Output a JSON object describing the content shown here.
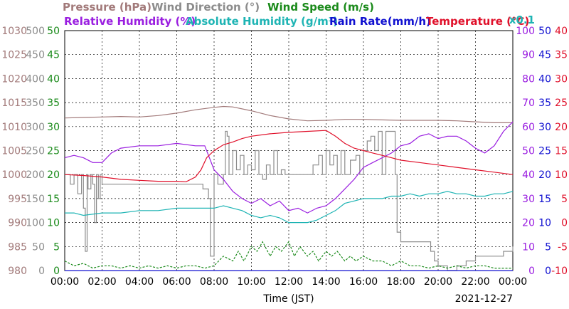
{
  "chart_data": {
    "type": "line",
    "date_label": "2021-12-27",
    "xlabel": "Time (JST)",
    "x_ticks": [
      "00:00",
      "02:00",
      "04:00",
      "06:00",
      "08:00",
      "10:00",
      "12:00",
      "14:00",
      "16:00",
      "18:00",
      "20:00",
      "22:00",
      "00:00"
    ],
    "x_range_hours": [
      0,
      24
    ],
    "grid": true,
    "legend": {
      "row1": [
        {
          "key": "pressure",
          "text": "Pressure (hPa)",
          "color": "#a27a7a"
        },
        {
          "key": "wind_dir",
          "text": "Wind Direction (°)",
          "color": "#8c8c8c"
        },
        {
          "key": "wind_speed",
          "text": "Wind Speed (m/s)",
          "color": "#1a8a1a"
        }
      ],
      "row2": [
        {
          "key": "rh",
          "text": "Relative Humidity (%)",
          "color": "#9a1ee0"
        },
        {
          "key": "ah",
          "text": "Absolute Humidity (g/m³)",
          "color": "#1eb4b4"
        },
        {
          "key": "rain",
          "text": "Rain Rate(mm/h)",
          "color": "#1010d0"
        },
        {
          "key": "temp",
          "text": "Temperature (°C)",
          "color": "#e0102a"
        }
      ],
      "multiplier_note": "x0.1"
    },
    "axes": {
      "pressure": {
        "color": "#a27a7a",
        "range": [
          980,
          1030
        ],
        "ticks": [
          "1030",
          "1025",
          "1020",
          "1015",
          "1010",
          "1005",
          "1000",
          "995",
          "990",
          "985",
          "980"
        ]
      },
      "wind_dir": {
        "color": "#8c8c8c",
        "range": [
          0,
          500
        ],
        "ticks": [
          "500",
          "450",
          "400",
          "350",
          "300",
          "250",
          "200",
          "150",
          "100",
          "50",
          "0"
        ]
      },
      "wind_speed": {
        "color": "#1a8a1a",
        "range": [
          0,
          50
        ],
        "ticks": [
          "50",
          "45",
          "40",
          "35",
          "30",
          "25",
          "20",
          "15",
          "10",
          "5",
          "0"
        ]
      },
      "rh": {
        "color": "#9a1ee0",
        "range": [
          0,
          100
        ],
        "ticks": [
          "100",
          "90",
          "80",
          "70",
          "60",
          "50",
          "40",
          "30",
          "20",
          "10",
          "0"
        ]
      },
      "rain": {
        "color": "#1010d0",
        "range": [
          0,
          50
        ],
        "ticks": [
          "50",
          "45",
          "40",
          "35",
          "30",
          "25",
          "20",
          "15",
          "10",
          "5",
          "0"
        ]
      },
      "temp": {
        "color": "#e0102a",
        "range": [
          -10,
          40
        ],
        "ticks": [
          "40",
          "35",
          "30",
          "25",
          "20",
          "15",
          "10",
          "5",
          "0",
          "-5",
          "-10"
        ]
      }
    },
    "series": [
      {
        "name": "Pressure (hPa)",
        "axis": "pressure",
        "color": "#a27a7a",
        "x": [
          0,
          1,
          2,
          3,
          4,
          5,
          6,
          7,
          8,
          8.5,
          9,
          10,
          11,
          12,
          13,
          14,
          15,
          16,
          17,
          18,
          19,
          20,
          21,
          22,
          23,
          24
        ],
        "values": [
          1011.8,
          1011.9,
          1012.0,
          1012.1,
          1012.0,
          1012.3,
          1012.8,
          1013.5,
          1014.0,
          1014.2,
          1014.1,
          1013.3,
          1012.3,
          1011.6,
          1011.2,
          1011.3,
          1011.5,
          1011.5,
          1011.4,
          1011.3,
          1011.3,
          1011.3,
          1011.2,
          1011.0,
          1010.8,
          1010.8
        ]
      },
      {
        "name": "Wind Direction (°)",
        "axis": "wind_dir",
        "color": "#8c8c8c",
        "step": true,
        "x": [
          0,
          0.3,
          0.5,
          0.7,
          0.9,
          1.0,
          1.1,
          1.2,
          1.25,
          1.4,
          1.5,
          1.6,
          1.7,
          1.8,
          1.9,
          2.0,
          2.1,
          7.3,
          7.4,
          7.7,
          7.8,
          8.0,
          8.2,
          8.5,
          8.6,
          8.7,
          8.8,
          9.0,
          9.2,
          9.4,
          9.6,
          9.8,
          10.0,
          10.2,
          10.4,
          10.6,
          10.8,
          11.0,
          11.2,
          11.4,
          11.6,
          11.8,
          12.0,
          12.5,
          13.0,
          13.3,
          13.6,
          13.8,
          14.0,
          14.2,
          14.4,
          14.6,
          14.8,
          15.0,
          15.3,
          15.6,
          15.8,
          16.0,
          16.2,
          16.4,
          16.6,
          16.8,
          17.0,
          17.2,
          17.4,
          17.6,
          17.7,
          17.8,
          18.0,
          19.0,
          19.6,
          19.8,
          20.0,
          20.5,
          21.0,
          21.5,
          22.0,
          23.0,
          23.5,
          24.0
        ],
        "values": [
          200,
          180,
          200,
          160,
          200,
          130,
          40,
          200,
          170,
          200,
          180,
          100,
          200,
          150,
          200,
          180,
          180,
          180,
          170,
          150,
          30,
          200,
          180,
          200,
          290,
          280,
          200,
          250,
          210,
          240,
          200,
          220,
          210,
          250,
          200,
          190,
          220,
          200,
          250,
          200,
          210,
          200,
          200,
          200,
          200,
          220,
          240,
          200,
          250,
          220,
          240,
          200,
          250,
          200,
          230,
          240,
          200,
          250,
          270,
          280,
          250,
          290,
          200,
          290,
          290,
          290,
          200,
          80,
          60,
          60,
          40,
          20,
          10,
          0,
          10,
          20,
          30,
          30,
          40,
          50
        ]
      },
      {
        "name": "Wind Speed (m/s)",
        "axis": "wind_speed",
        "color": "#1a8a1a",
        "dashed": true,
        "x": [
          0,
          0.5,
          1,
          1.5,
          2,
          2.5,
          3,
          3.5,
          4,
          4.5,
          5,
          5.5,
          6,
          6.5,
          7,
          7.5,
          8,
          8.5,
          9,
          9.3,
          9.6,
          10,
          10.3,
          10.6,
          11,
          11.3,
          11.6,
          12,
          12.3,
          12.6,
          13,
          13.3,
          13.6,
          14,
          14.3,
          14.6,
          15,
          15.3,
          15.6,
          16,
          16.5,
          17,
          17.5,
          18,
          18.5,
          19,
          19.5,
          20,
          20.5,
          21,
          21.5,
          22,
          22.5,
          23,
          23.5,
          24
        ],
        "values": [
          2,
          1,
          1.5,
          0.5,
          1,
          1,
          0.5,
          1,
          0.5,
          1,
          0.5,
          1,
          0.5,
          1,
          1,
          0.5,
          1,
          3,
          2,
          4,
          2,
          5,
          4,
          6,
          3,
          5,
          4,
          6,
          3,
          5,
          3,
          4,
          2,
          4,
          3,
          4,
          2,
          3,
          2,
          3,
          2,
          2,
          1,
          2,
          1,
          1,
          0.5,
          1,
          0.5,
          1,
          0.5,
          1,
          1,
          0.5,
          0.5,
          0.5
        ]
      },
      {
        "name": "Relative Humidity (%)",
        "axis": "rh",
        "color": "#9a1ee0",
        "x": [
          0,
          0.5,
          1,
          1.5,
          2,
          2.5,
          3,
          4,
          5,
          6,
          7,
          7.5,
          8,
          8.5,
          9,
          9.5,
          10,
          10.5,
          11,
          11.5,
          12,
          12.5,
          13,
          13.5,
          14,
          14.5,
          15,
          15.5,
          16,
          16.5,
          17,
          17.5,
          18,
          18.5,
          19,
          19.5,
          20,
          20.5,
          21,
          21.5,
          22,
          22.5,
          23,
          23.5,
          24
        ],
        "values": [
          47,
          48,
          47,
          45,
          45,
          49,
          51,
          52,
          52,
          53,
          52,
          52,
          42,
          38,
          33,
          30,
          28,
          30,
          27,
          29,
          25,
          26,
          24,
          26,
          27,
          30,
          34,
          38,
          43,
          45,
          47,
          49,
          52,
          53,
          56,
          57,
          55,
          56,
          56,
          54,
          51,
          49,
          52,
          58,
          62
        ]
      },
      {
        "name": "Absolute Humidity (g/m³)",
        "axis": "rh",
        "color": "#1eb4b4",
        "x": [
          0,
          0.5,
          1,
          2,
          3,
          4,
          5,
          6,
          7,
          7.5,
          8,
          8.5,
          9,
          9.5,
          10,
          10.5,
          11,
          11.5,
          12,
          12.5,
          13,
          13.5,
          14,
          14.5,
          15,
          15.5,
          16,
          16.5,
          17,
          17.5,
          18,
          18.5,
          19,
          19.5,
          20,
          20.5,
          21,
          21.5,
          22,
          22.5,
          23,
          23.5,
          24
        ],
        "values": [
          24,
          24,
          23,
          24,
          24,
          25,
          25,
          26,
          26,
          26,
          26,
          27,
          26,
          25,
          23,
          22,
          23,
          22,
          20,
          20,
          20,
          21,
          23,
          25,
          28,
          29,
          30,
          30,
          30,
          31,
          31,
          32,
          31,
          32,
          32,
          33,
          32,
          32,
          31,
          31,
          32,
          32,
          33
        ]
      },
      {
        "name": "Temperature (°C)",
        "axis": "temp",
        "color": "#e0102a",
        "x": [
          0,
          1,
          2,
          3,
          4,
          5,
          6,
          6.5,
          7,
          7.3,
          7.6,
          8,
          8.5,
          9,
          9.5,
          10,
          11,
          12,
          13,
          14,
          14.5,
          15,
          15.5,
          16,
          16.5,
          17,
          17.5,
          18,
          19,
          20,
          21,
          22,
          23,
          24
        ],
        "values": [
          10,
          9.8,
          9.5,
          9,
          8.8,
          8.6,
          8.6,
          8.5,
          9.5,
          11,
          13.5,
          15,
          16.2,
          16.8,
          17.5,
          18,
          18.5,
          18.8,
          19,
          19.2,
          18,
          16.5,
          15.5,
          15,
          14.5,
          14,
          13.5,
          13,
          12.5,
          12,
          11.5,
          11,
          10.5,
          10
        ]
      },
      {
        "name": "Rain Rate(mm/h)",
        "axis": "rain",
        "color": "#1010d0",
        "x": [
          0,
          24
        ],
        "values": [
          0,
          0
        ]
      }
    ]
  }
}
